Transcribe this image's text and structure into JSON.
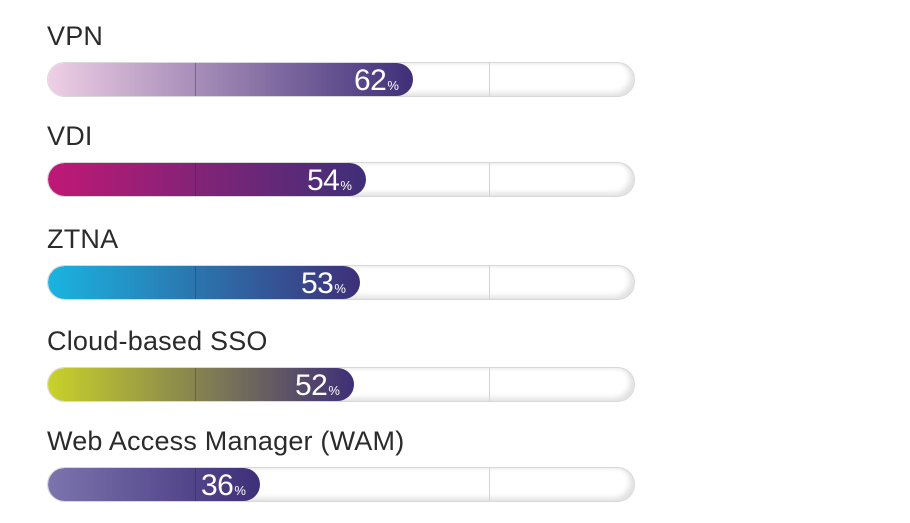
{
  "chart_data": {
    "type": "bar",
    "orientation": "horizontal",
    "categories": [
      "VPN",
      "VDI",
      "ZTNA",
      "Cloud-based SSO",
      "Web Access Manager (WAM)"
    ],
    "values": [
      62,
      54,
      53,
      52,
      36
    ],
    "value_suffix": "%",
    "xlim": [
      0,
      100
    ],
    "title": "",
    "xlabel": "",
    "ylabel": "",
    "grid": false,
    "legend": "none",
    "colors": [
      {
        "start": "#efcfe5",
        "end": "#3e2f78"
      },
      {
        "start": "#c01876",
        "end": "#3e2f78"
      },
      {
        "start": "#1ab4e0",
        "end": "#3e2f78"
      },
      {
        "start": "#c9d22a",
        "end": "#3e2f78"
      },
      {
        "start": "#7c74ad",
        "end": "#3e2f78"
      }
    ]
  }
}
